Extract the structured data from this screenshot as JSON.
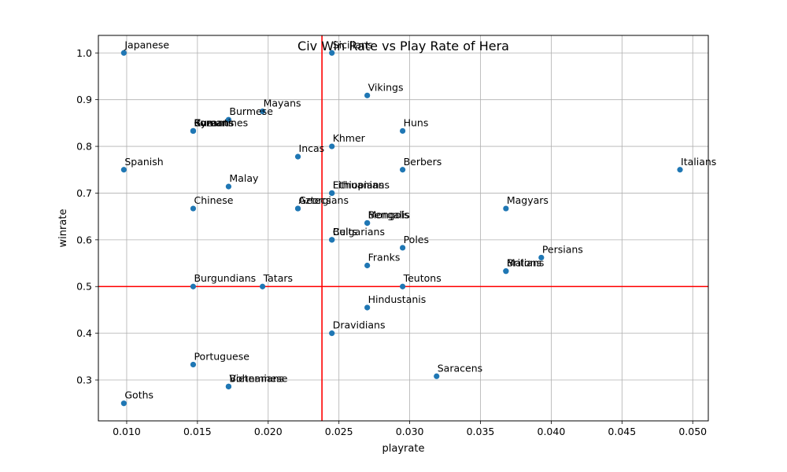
{
  "chart_data": {
    "type": "scatter",
    "title": "Civ Win Rate vs Play Rate of Hera",
    "xlabel": "playrate",
    "ylabel": "winrate",
    "xlim": [
      0.008,
      0.0511
    ],
    "ylim": [
      0.2125,
      1.0375
    ],
    "xticks": [
      0.01,
      0.015,
      0.02,
      0.025,
      0.03,
      0.035,
      0.04,
      0.045,
      0.05
    ],
    "yticks": [
      0.3,
      0.4,
      0.5,
      0.6,
      0.7,
      0.8,
      0.9,
      1.0
    ],
    "tick_decimals_x": 3,
    "tick_decimals_y": 1,
    "grid": true,
    "point_color": "#1f77b4",
    "reference_line_color": "#ff0000",
    "reference_lines": {
      "x": 0.0238,
      "y": 0.5
    },
    "points": [
      {
        "label": "Japanese",
        "x": 0.0098,
        "y": 1.0
      },
      {
        "label": "Sicilians",
        "x": 0.0245,
        "y": 1.0
      },
      {
        "label": "Vikings",
        "x": 0.027,
        "y": 0.909
      },
      {
        "label": "Mayans",
        "x": 0.0196,
        "y": 0.875
      },
      {
        "label": "Burmese",
        "x": 0.0172,
        "y": 0.857
      },
      {
        "label": "Koreans",
        "x": 0.0147,
        "y": 0.833
      },
      {
        "label": "Romans",
        "x": 0.0147,
        "y": 0.833
      },
      {
        "label": "Cumans",
        "x": 0.0147,
        "y": 0.833
      },
      {
        "label": "Byzantines",
        "x": 0.0147,
        "y": 0.833
      },
      {
        "label": "Huns",
        "x": 0.0295,
        "y": 0.833
      },
      {
        "label": "Khmer",
        "x": 0.0245,
        "y": 0.8
      },
      {
        "label": "Incas",
        "x": 0.0221,
        "y": 0.778
      },
      {
        "label": "Spanish",
        "x": 0.0098,
        "y": 0.75
      },
      {
        "label": "Berbers",
        "x": 0.0295,
        "y": 0.75
      },
      {
        "label": "Italians",
        "x": 0.0491,
        "y": 0.75
      },
      {
        "label": "Malay",
        "x": 0.0172,
        "y": 0.714
      },
      {
        "label": "Lithuanians",
        "x": 0.0245,
        "y": 0.7
      },
      {
        "label": "Ethiopians",
        "x": 0.0245,
        "y": 0.7
      },
      {
        "label": "Chinese",
        "x": 0.0147,
        "y": 0.667
      },
      {
        "label": "Aztecs",
        "x": 0.0221,
        "y": 0.667
      },
      {
        "label": "Georgians",
        "x": 0.0221,
        "y": 0.667
      },
      {
        "label": "Magyars",
        "x": 0.0368,
        "y": 0.667
      },
      {
        "label": "Mongols",
        "x": 0.027,
        "y": 0.636
      },
      {
        "label": "Bengalis",
        "x": 0.027,
        "y": 0.636
      },
      {
        "label": "Celts",
        "x": 0.0245,
        "y": 0.6
      },
      {
        "label": "Bulgarians",
        "x": 0.0245,
        "y": 0.6
      },
      {
        "label": "Poles",
        "x": 0.0295,
        "y": 0.583
      },
      {
        "label": "Persians",
        "x": 0.0393,
        "y": 0.562
      },
      {
        "label": "Franks",
        "x": 0.027,
        "y": 0.545
      },
      {
        "label": "Malians",
        "x": 0.0368,
        "y": 0.533
      },
      {
        "label": "Britons",
        "x": 0.0368,
        "y": 0.533
      },
      {
        "label": "Burgundians",
        "x": 0.0147,
        "y": 0.5
      },
      {
        "label": "Tatars",
        "x": 0.0196,
        "y": 0.5
      },
      {
        "label": "Teutons",
        "x": 0.0295,
        "y": 0.5
      },
      {
        "label": "Hindustanis",
        "x": 0.027,
        "y": 0.455
      },
      {
        "label": "Dravidians",
        "x": 0.0245,
        "y": 0.4
      },
      {
        "label": "Portuguese",
        "x": 0.0147,
        "y": 0.333
      },
      {
        "label": "Saracens",
        "x": 0.0319,
        "y": 0.308
      },
      {
        "label": "Vietnamese",
        "x": 0.0172,
        "y": 0.286
      },
      {
        "label": "Bohemians",
        "x": 0.0172,
        "y": 0.286
      },
      {
        "label": "Goths",
        "x": 0.0098,
        "y": 0.25
      }
    ]
  }
}
